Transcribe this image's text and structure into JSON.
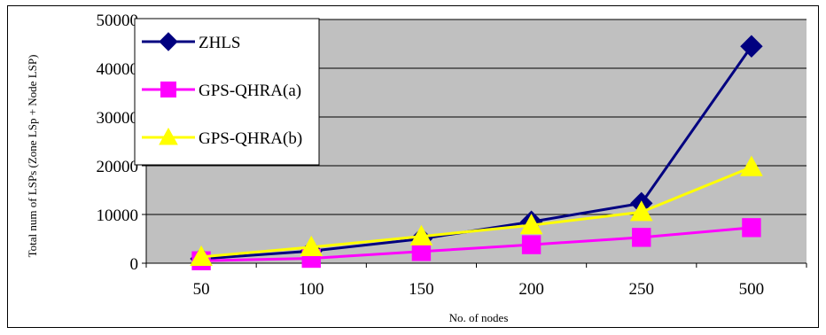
{
  "chart_data": {
    "type": "line",
    "title": "",
    "xlabel": "No. of nodes",
    "ylabel": "Total num of LSPs (Zone LSp + Node LSP)",
    "categories": [
      "50",
      "100",
      "150",
      "200",
      "250",
      "500"
    ],
    "ylim": [
      0,
      50000
    ],
    "yticks": [
      0,
      10000,
      20000,
      30000,
      40000,
      50000
    ],
    "ytick_labels": [
      "0",
      "10000",
      "20000",
      "30000",
      "40000",
      "50000"
    ],
    "grid": "horizontal",
    "plot_background": "#c0c0c0",
    "legend_position": "top-left",
    "series": [
      {
        "name": "ZHLS",
        "values": [
          900,
          2500,
          5000,
          8500,
          12300,
          44500
        ],
        "color": "#000080",
        "marker": "diamond"
      },
      {
        "name": "GPS-QHRA(a)",
        "values": [
          500,
          1000,
          2400,
          3800,
          5300,
          7300
        ],
        "color": "#ff00ff",
        "marker": "square"
      },
      {
        "name": "GPS-QHRA(b)",
        "values": [
          1300,
          3300,
          5500,
          7800,
          10500,
          19700
        ],
        "color": "#ffff00",
        "marker": "triangle"
      }
    ]
  }
}
